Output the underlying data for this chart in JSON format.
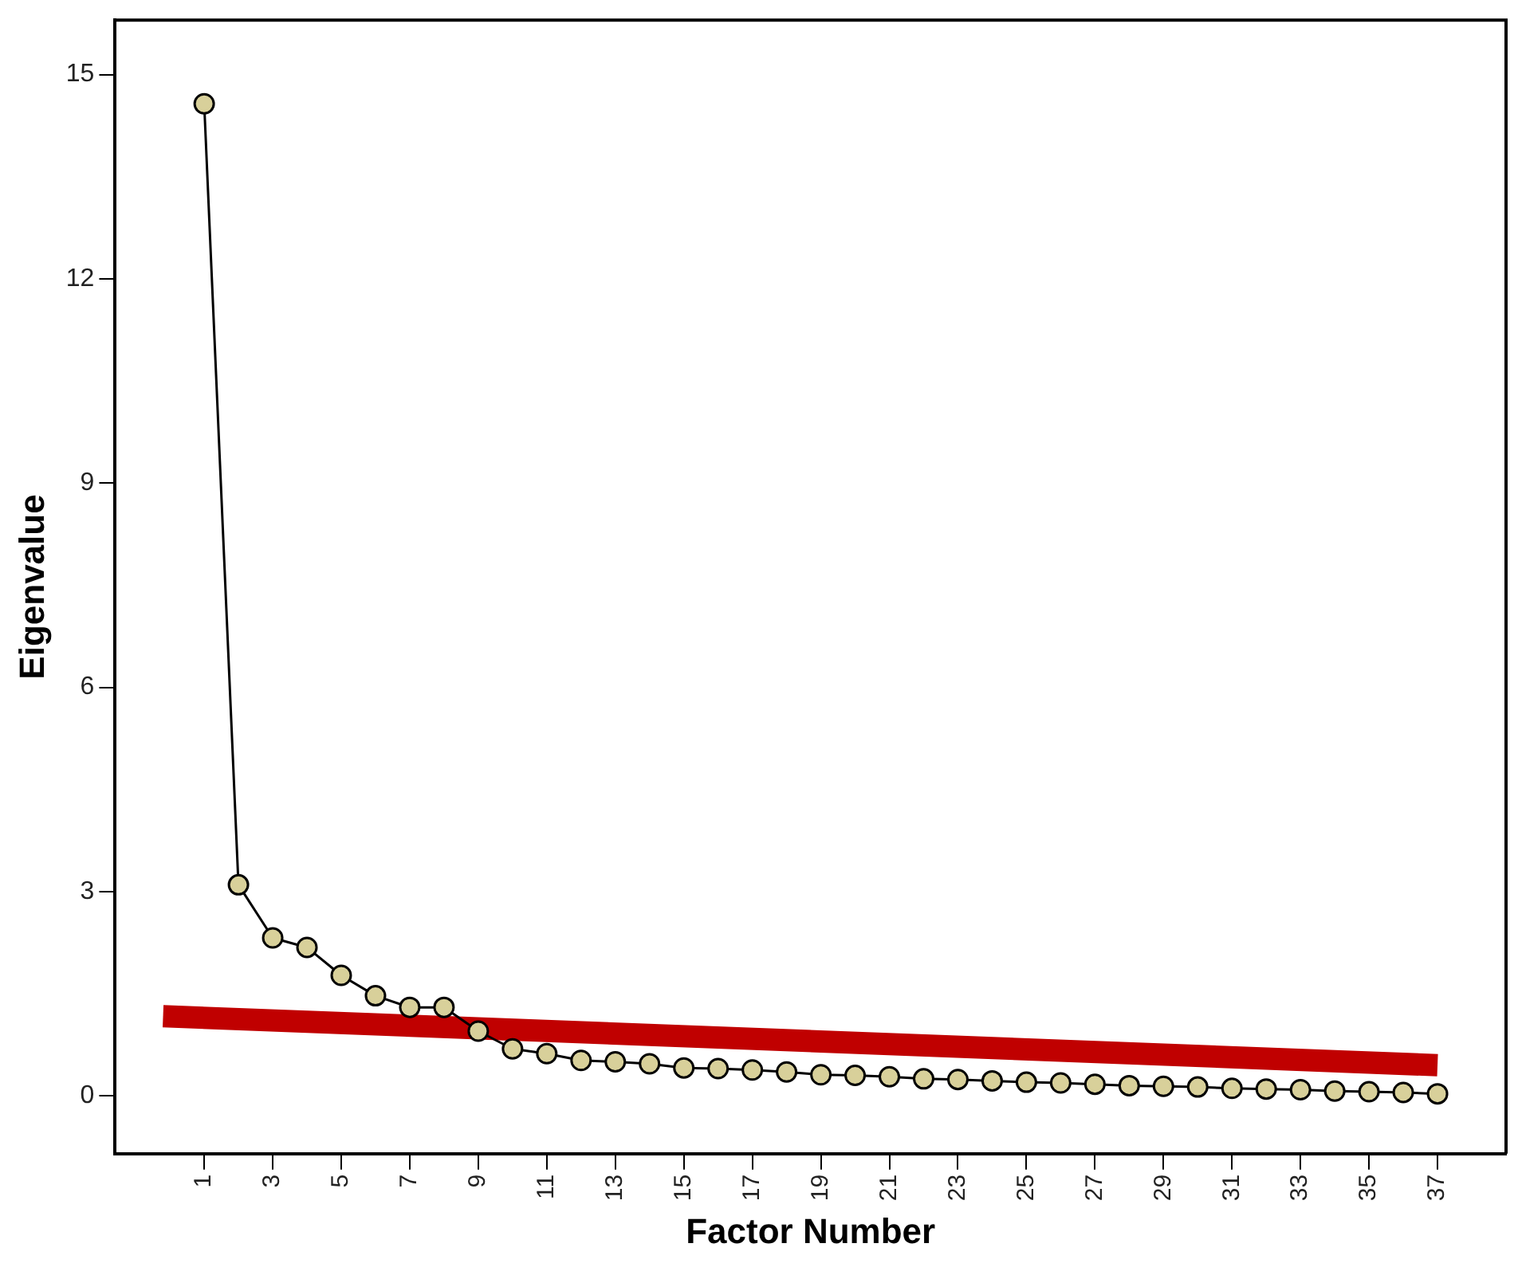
{
  "chart_data": {
    "type": "line",
    "xlabel": "Factor Number",
    "ylabel": "Eigenvalue",
    "x": [
      1,
      2,
      3,
      4,
      5,
      6,
      7,
      8,
      9,
      10,
      11,
      12,
      13,
      14,
      15,
      16,
      17,
      18,
      19,
      20,
      21,
      22,
      23,
      24,
      25,
      26,
      27,
      28,
      29,
      30,
      31,
      32,
      33,
      34,
      35,
      36,
      37
    ],
    "xlim": [
      -1.6,
      39
    ],
    "xticks": [
      1,
      3,
      5,
      7,
      9,
      11,
      13,
      15,
      17,
      19,
      21,
      23,
      25,
      27,
      29,
      31,
      33,
      35,
      37
    ],
    "ylim": [
      -0.85,
      15.8
    ],
    "yticks": [
      0,
      3,
      6,
      9,
      12,
      15
    ],
    "grid": false,
    "legend": false,
    "series": [
      {
        "color": "#d8d09a",
        "marker": "circle",
        "values": [
          14.57,
          3.1,
          2.32,
          2.18,
          1.77,
          1.47,
          1.3,
          1.3,
          0.95,
          0.69,
          0.62,
          0.52,
          0.5,
          0.47,
          0.41,
          0.4,
          0.38,
          0.35,
          0.31,
          0.3,
          0.28,
          0.25,
          0.24,
          0.22,
          0.2,
          0.19,
          0.17,
          0.15,
          0.14,
          0.13,
          0.11,
          0.1,
          0.09,
          0.07,
          0.06,
          0.05,
          0.03
        ]
      },
      {
        "type": "line",
        "color": "#c00000",
        "marker": "none",
        "x": [
          -0.2,
          37
        ],
        "values": [
          1.17,
          0.45
        ]
      }
    ]
  }
}
